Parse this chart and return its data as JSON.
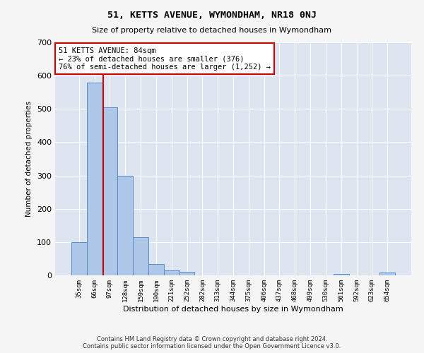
{
  "title": "51, KETTS AVENUE, WYMONDHAM, NR18 0NJ",
  "subtitle": "Size of property relative to detached houses in Wymondham",
  "xlabel": "Distribution of detached houses by size in Wymondham",
  "ylabel": "Number of detached properties",
  "categories": [
    "35sqm",
    "66sqm",
    "97sqm",
    "128sqm",
    "159sqm",
    "190sqm",
    "221sqm",
    "252sqm",
    "282sqm",
    "313sqm",
    "344sqm",
    "375sqm",
    "406sqm",
    "437sqm",
    "468sqm",
    "499sqm",
    "530sqm",
    "561sqm",
    "592sqm",
    "623sqm",
    "654sqm"
  ],
  "values": [
    100,
    580,
    505,
    300,
    115,
    35,
    15,
    10,
    0,
    0,
    0,
    0,
    0,
    0,
    0,
    0,
    0,
    5,
    0,
    0,
    8
  ],
  "bar_color": "#aec6e8",
  "bar_edge_color": "#5b8cc8",
  "highlight_color": "#cc0000",
  "annotation_title": "51 KETTS AVENUE: 84sqm",
  "annotation_line1": "← 23% of detached houses are smaller (376)",
  "annotation_line2": "76% of semi-detached houses are larger (1,252) →",
  "annotation_box_color": "#ffffff",
  "annotation_border_color": "#cc0000",
  "ylim": [
    0,
    700
  ],
  "yticks": [
    0,
    100,
    200,
    300,
    400,
    500,
    600,
    700
  ],
  "fig_bg_color": "#f5f5f5",
  "plot_bg_color": "#dde5f0",
  "footer": "Contains HM Land Registry data © Crown copyright and database right 2024.\nContains public sector information licensed under the Open Government Licence v3.0."
}
